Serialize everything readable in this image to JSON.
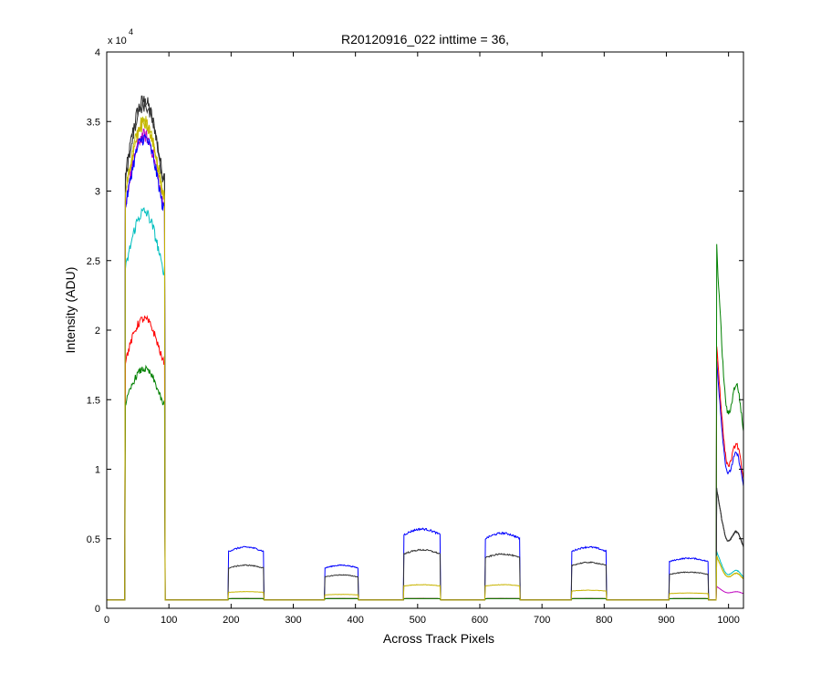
{
  "chart_data": {
    "type": "line",
    "title": "R20120916_022 inttime = 36,",
    "xlabel": "Across Track Pixels",
    "ylabel": "Intensity (ADU)",
    "exponent_label": "x 10",
    "exponent_power": "4",
    "xlim": [
      0,
      1024
    ],
    "ylim": [
      0,
      40000
    ],
    "xticks": [
      0,
      100,
      200,
      300,
      400,
      500,
      600,
      700,
      800,
      900,
      1000
    ],
    "yticks": [
      0,
      5000,
      10000,
      15000,
      20000,
      25000,
      30000,
      35000,
      40000
    ],
    "ytick_labels": [
      "0",
      "0.5",
      "1",
      "1.5",
      "2",
      "2.5",
      "3",
      "3.5",
      "4"
    ],
    "xtick_labels": [
      "0",
      "100",
      "200",
      "300",
      "400",
      "500",
      "600",
      "700",
      "800",
      "900",
      "1000"
    ],
    "grid": false,
    "legend": "none",
    "baseline": 600,
    "segments": [
      {
        "start": 30,
        "end": 93
      },
      {
        "start": 196,
        "end": 252
      },
      {
        "start": 351,
        "end": 404
      },
      {
        "start": 478,
        "end": 536
      },
      {
        "start": 609,
        "end": 664
      },
      {
        "start": 748,
        "end": 803
      },
      {
        "start": 905,
        "end": 967
      },
      {
        "start": 981,
        "end": 1024
      }
    ],
    "series": [
      {
        "color": "#2b2b2b",
        "peaks": [
          36500,
          700,
          700,
          700,
          700,
          700,
          700,
          8000
        ]
      },
      {
        "color": "#bfbf00",
        "peaks": [
          35000,
          700,
          700,
          700,
          700,
          700,
          700,
          3500
        ]
      },
      {
        "color": "#bf00bf",
        "peaks": [
          34000,
          700,
          700,
          700,
          700,
          700,
          700,
          1500
        ]
      },
      {
        "color": "#0000ff",
        "peaks": [
          33800,
          4400,
          3100,
          5700,
          5400,
          4400,
          3600,
          16500
        ]
      },
      {
        "color": "#00bfbf",
        "peaks": [
          28500,
          700,
          700,
          700,
          700,
          700,
          700,
          3800
        ]
      },
      {
        "color": "#ff0000",
        "peaks": [
          20800,
          700,
          700,
          700,
          700,
          700,
          700,
          17500
        ]
      },
      {
        "color": "#008000",
        "peaks": [
          17200,
          700,
          700,
          700,
          700,
          700,
          700,
          24000
        ]
      },
      {
        "color": "#303030",
        "peaks": [
          36200,
          3100,
          2400,
          4200,
          3900,
          3300,
          2600,
          8000
        ]
      },
      {
        "color": "#c8b400",
        "peaks": [
          34800,
          1200,
          1000,
          1700,
          1700,
          1300,
          1100,
          3500
        ]
      }
    ]
  }
}
